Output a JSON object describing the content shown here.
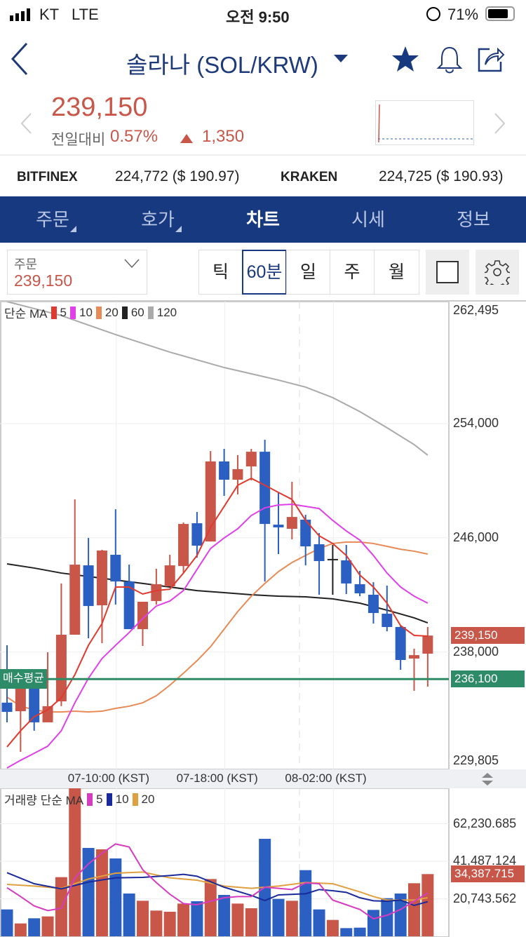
{
  "status": {
    "carrier": "KT",
    "network": "LTE",
    "time": "오전 9:50",
    "battery": "71%"
  },
  "nav": {
    "title": "솔라나 (SOL/KRW)",
    "icons": [
      "back-icon",
      "caret-down-icon",
      "star-icon",
      "bell-icon",
      "share-icon"
    ]
  },
  "quote": {
    "price": "239,150",
    "change_label": "전일대비",
    "change_pct": "0.57%",
    "change_abs": "1,350"
  },
  "exchanges": [
    {
      "name": "BITFINEX",
      "value": "224,772 ($ 190.97)"
    },
    {
      "name": "KRAKEN",
      "value": "224,725 ($ 190.93)"
    }
  ],
  "tabs": [
    {
      "label": "주문"
    },
    {
      "label": "호가"
    },
    {
      "label": "차트"
    },
    {
      "label": "시세"
    },
    {
      "label": "정보"
    }
  ],
  "toolbar": {
    "order_label": "주문",
    "order_price": "239,150",
    "periods": [
      "틱",
      "60분",
      "일",
      "주",
      "월"
    ],
    "selected_period": "60분"
  },
  "colors": {
    "up": "#c8574a",
    "down": "#2b5fc1",
    "brand": "#17397f",
    "avg": "#2e8b67"
  },
  "chart_data": [
    {
      "type": "candlestick",
      "title": "단순 MA",
      "legend": [
        "5",
        "10",
        "20",
        "60",
        "120"
      ],
      "legend_colors": [
        "#e03a2f",
        "#e040e8",
        "#e88a55",
        "#222222",
        "#aaaaaa"
      ],
      "y_ticks": [
        "262,495",
        "254,000",
        "246,000",
        "238,000",
        "229,805"
      ],
      "y_tick_values": [
        262495,
        254000,
        246000,
        238000,
        229805
      ],
      "ylim": [
        229805,
        262495
      ],
      "x_ticks": [
        "07-10:00 (KST)",
        "07-18:00 (KST)",
        "08-02:00 (KST)"
      ],
      "x_tick_index": [
        8,
        16,
        24
      ],
      "current_price_label": "239,150",
      "current_price": 239150,
      "avg_label": "매수평균",
      "avg_price_label": "236,100",
      "avg_price": 236100,
      "candles": [
        [
          234450,
          238470,
          233070,
          233800
        ],
        [
          233850,
          235570,
          231000,
          235570
        ],
        [
          235570,
          235570,
          232480,
          233070
        ],
        [
          233070,
          237980,
          233070,
          234200
        ],
        [
          234540,
          242800,
          234200,
          239210
        ],
        [
          239210,
          248690,
          239210,
          244120
        ],
        [
          244070,
          245990,
          238960,
          241220
        ],
        [
          241270,
          245160,
          238620,
          245110
        ],
        [
          244810,
          248000,
          241320,
          242940
        ],
        [
          242940,
          244120,
          239600,
          239600
        ],
        [
          239600,
          241520,
          238420,
          241520
        ],
        [
          241570,
          243830,
          241320,
          242750
        ],
        [
          242600,
          244810,
          242600,
          244070
        ],
        [
          244020,
          247070,
          243530,
          246970
        ],
        [
          247020,
          247810,
          244610,
          245450
        ],
        [
          245740,
          252080,
          245740,
          251350
        ],
        [
          251350,
          252230,
          248940,
          250070
        ],
        [
          250070,
          251790,
          249040,
          250810
        ],
        [
          251000,
          252230,
          250020,
          252030
        ],
        [
          252030,
          252870,
          242940,
          246970
        ],
        [
          246920,
          249180,
          244860,
          246730
        ],
        [
          246630,
          249920,
          245890,
          247460
        ],
        [
          247270,
          247610,
          244070,
          245400
        ],
        [
          245550,
          246330,
          242010,
          244370
        ],
        [
          244520,
          245500,
          242010,
          244520
        ],
        [
          244420,
          245500,
          242060,
          242800
        ],
        [
          242750,
          243680,
          241910,
          242110
        ],
        [
          242010,
          242890,
          239990,
          240730
        ],
        [
          240680,
          242650,
          239450,
          239750
        ],
        [
          239750,
          239850,
          236750,
          237440
        ],
        [
          237540,
          238230,
          235280,
          237780
        ],
        [
          237880,
          239750,
          235570,
          239150
        ]
      ],
      "ma5": [
        231350,
        232480,
        233460,
        233950,
        234790,
        236410,
        238470,
        239990,
        242550,
        242550,
        242060,
        242300,
        242400,
        243530,
        244760,
        246730,
        248200,
        249680,
        250170,
        249680,
        249180,
        248690,
        247220,
        246140,
        245600,
        244760,
        243390,
        242550,
        241420,
        239850,
        239160,
        239110
      ],
      "ma10": [
        229870,
        230410,
        230900,
        231400,
        232480,
        234440,
        236160,
        237540,
        238470,
        239360,
        240340,
        241220,
        241570,
        242300,
        243780,
        245250,
        245990,
        246630,
        247560,
        248100,
        248300,
        248350,
        248200,
        248050,
        247220,
        246480,
        245840,
        244760,
        243530,
        242550,
        241910,
        241420
      ],
      "ma20": [
        234840,
        234200,
        233950,
        233800,
        233800,
        233850,
        233800,
        233850,
        234050,
        234200,
        234440,
        234930,
        235670,
        236510,
        237390,
        238370,
        239600,
        240830,
        241910,
        242800,
        243630,
        244270,
        244760,
        245250,
        245600,
        245700,
        245700,
        245600,
        245400,
        245200,
        245060,
        244860
      ],
      "ma60": [
        [
          0,
          244170
        ],
        [
          2,
          243880
        ],
        [
          4,
          243530
        ],
        [
          6,
          243290
        ],
        [
          8,
          243040
        ],
        [
          10,
          242800
        ],
        [
          12,
          242550
        ],
        [
          14,
          242300
        ],
        [
          16,
          242160
        ],
        [
          18,
          242010
        ],
        [
          20,
          241910
        ],
        [
          22,
          241860
        ],
        [
          24,
          241720
        ],
        [
          26,
          241420
        ],
        [
          28,
          240930
        ],
        [
          30,
          240390
        ],
        [
          31,
          240040
        ]
      ],
      "ma120": [
        [
          0,
          262550
        ],
        [
          4,
          261570
        ],
        [
          8,
          260240
        ],
        [
          12,
          259010
        ],
        [
          16,
          257930
        ],
        [
          20,
          257050
        ],
        [
          22,
          256560
        ],
        [
          24,
          255820
        ],
        [
          26,
          254840
        ],
        [
          28,
          253710
        ],
        [
          30,
          252530
        ],
        [
          31,
          251790
        ]
      ]
    },
    {
      "type": "bar",
      "title": "거래량 단순 MA",
      "legend": [
        "5",
        "10",
        "20"
      ],
      "legend_colors": [
        "#d63cc0",
        "#1a2a9a",
        "#e0a040"
      ],
      "y_ticks": [
        "62,230.685",
        "41,487.124",
        "20,743.562"
      ],
      "y_tick_values": [
        62230.685,
        41487.124,
        20743.562
      ],
      "current_label": "34,387.715",
      "values": [
        14860,
        7110,
        9950,
        10990,
        32700,
        82000,
        48850,
        48080,
        43040,
        23650,
        19640,
        14220,
        13570,
        18090,
        19390,
        31660,
        22880,
        18090,
        15510,
        53890,
        20680,
        19640,
        36570,
        14860,
        9050,
        4520,
        4780,
        14600,
        21070,
        23650,
        29340,
        34388
      ],
      "ma5": [
        [
          0,
          26880
        ],
        [
          1,
          21970
        ],
        [
          2,
          16800
        ],
        [
          3,
          14220
        ],
        [
          4,
          15510
        ],
        [
          5,
          32310
        ],
        [
          6,
          40060
        ],
        [
          7,
          45880
        ],
        [
          8,
          51050
        ],
        [
          9,
          49370
        ],
        [
          10,
          36830
        ],
        [
          11,
          29730
        ],
        [
          12,
          23260
        ],
        [
          13,
          18090
        ],
        [
          14,
          17450
        ],
        [
          15,
          19390
        ],
        [
          16,
          21320
        ],
        [
          17,
          21970
        ],
        [
          18,
          21970
        ],
        [
          19,
          27140
        ],
        [
          20,
          26490
        ],
        [
          21,
          25850
        ],
        [
          22,
          29470
        ],
        [
          23,
          29080
        ],
        [
          24,
          20030
        ],
        [
          25,
          17450
        ],
        [
          26,
          14860
        ],
        [
          27,
          9690
        ],
        [
          28,
          11630
        ],
        [
          29,
          14860
        ],
        [
          30,
          19390
        ],
        [
          31,
          23910
        ]
      ],
      "ma10": [
        [
          0,
          35150
        ],
        [
          2,
          29080
        ],
        [
          4,
          26240
        ],
        [
          6,
          29980
        ],
        [
          8,
          32310
        ],
        [
          10,
          32570
        ],
        [
          12,
          33600
        ],
        [
          13,
          34250
        ],
        [
          14,
          33210
        ],
        [
          16,
          27140
        ],
        [
          18,
          22620
        ],
        [
          19,
          19770
        ],
        [
          20,
          22880
        ],
        [
          22,
          23520
        ],
        [
          23,
          25850
        ],
        [
          24,
          25200
        ],
        [
          25,
          24300
        ],
        [
          26,
          21320
        ],
        [
          27,
          19640
        ],
        [
          28,
          19390
        ],
        [
          29,
          20030
        ],
        [
          30,
          17060
        ],
        [
          31,
          19130
        ]
      ],
      "ma20": [
        [
          0,
          28690
        ],
        [
          2,
          27790
        ],
        [
          4,
          26490
        ],
        [
          6,
          31660
        ],
        [
          8,
          34890
        ],
        [
          10,
          35540
        ],
        [
          12,
          32310
        ],
        [
          14,
          31020
        ],
        [
          16,
          27790
        ],
        [
          18,
          26490
        ],
        [
          20,
          27790
        ],
        [
          22,
          29730
        ],
        [
          24,
          29080
        ],
        [
          26,
          24560
        ],
        [
          27,
          21970
        ],
        [
          28,
          20030
        ],
        [
          29,
          20030
        ],
        [
          30,
          20030
        ],
        [
          31,
          21320
        ]
      ]
    }
  ]
}
